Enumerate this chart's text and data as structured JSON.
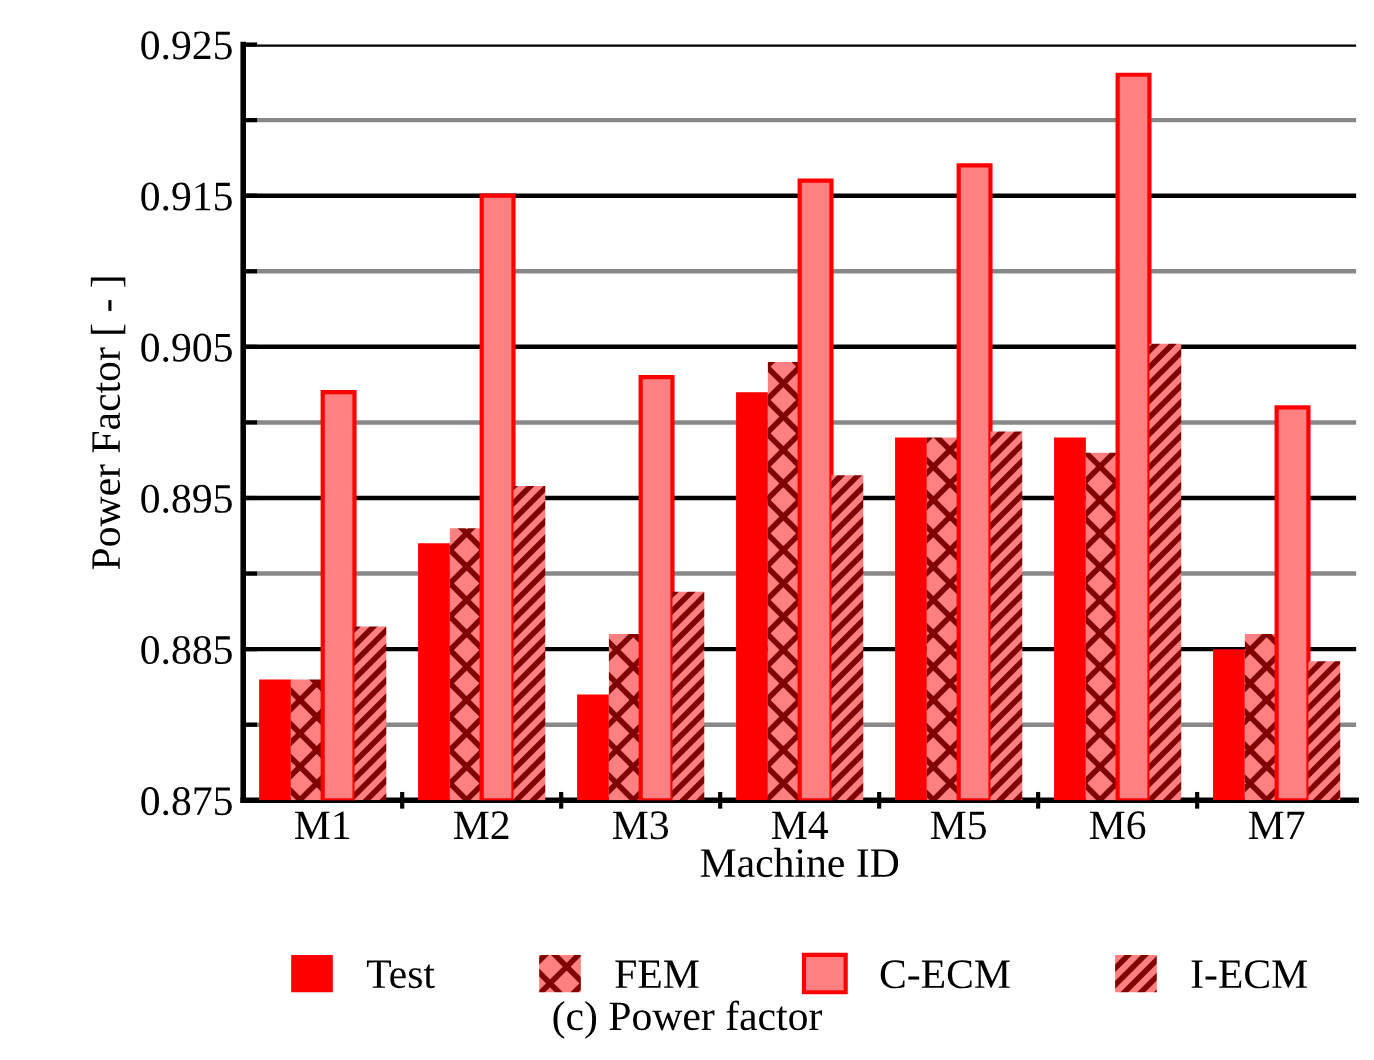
{
  "chart_data": {
    "type": "bar",
    "xlabel": "Machine ID",
    "ylabel": "Power Factor [ - ]",
    "categories": [
      "M1",
      "M2",
      "M3",
      "M4",
      "M5",
      "M6",
      "M7"
    ],
    "series": [
      {
        "name": "Test",
        "color": "#ff0000",
        "values": [
          0.883,
          0.892,
          0.882,
          0.902,
          0.899,
          0.899,
          0.885
        ]
      },
      {
        "name": "FEM",
        "color": "#ff8080",
        "values": [
          0.883,
          0.893,
          0.886,
          0.904,
          0.899,
          0.898,
          0.886
        ]
      },
      {
        "name": "C-ECM",
        "color": "#ff8080",
        "values": [
          0.902,
          0.915,
          0.903,
          0.916,
          0.917,
          0.923,
          0.901
        ]
      },
      {
        "name": "I-ECM",
        "color": "#ff8080",
        "values": [
          0.8865,
          0.8958,
          0.8888,
          0.8965,
          0.8994,
          0.9052,
          0.8842
        ]
      }
    ],
    "ylim": [
      0.875,
      0.925
    ],
    "yticks": [
      {
        "value": 0.875,
        "label": "0.875"
      },
      {
        "value": 0.88,
        "label": null
      },
      {
        "value": 0.885,
        "label": "0.885"
      },
      {
        "value": 0.89,
        "label": null
      },
      {
        "value": 0.895,
        "label": "0.895"
      },
      {
        "value": 0.9,
        "label": null
      },
      {
        "value": 0.905,
        "label": "0.905"
      },
      {
        "value": 0.91,
        "label": null
      },
      {
        "value": 0.915,
        "label": "0.915"
      },
      {
        "value": 0.92,
        "label": null
      },
      {
        "value": 0.925,
        "label": "0.925"
      }
    ],
    "grid": "y",
    "legend": "bottom",
    "annotations": [
      "(c) Power factor"
    ]
  }
}
